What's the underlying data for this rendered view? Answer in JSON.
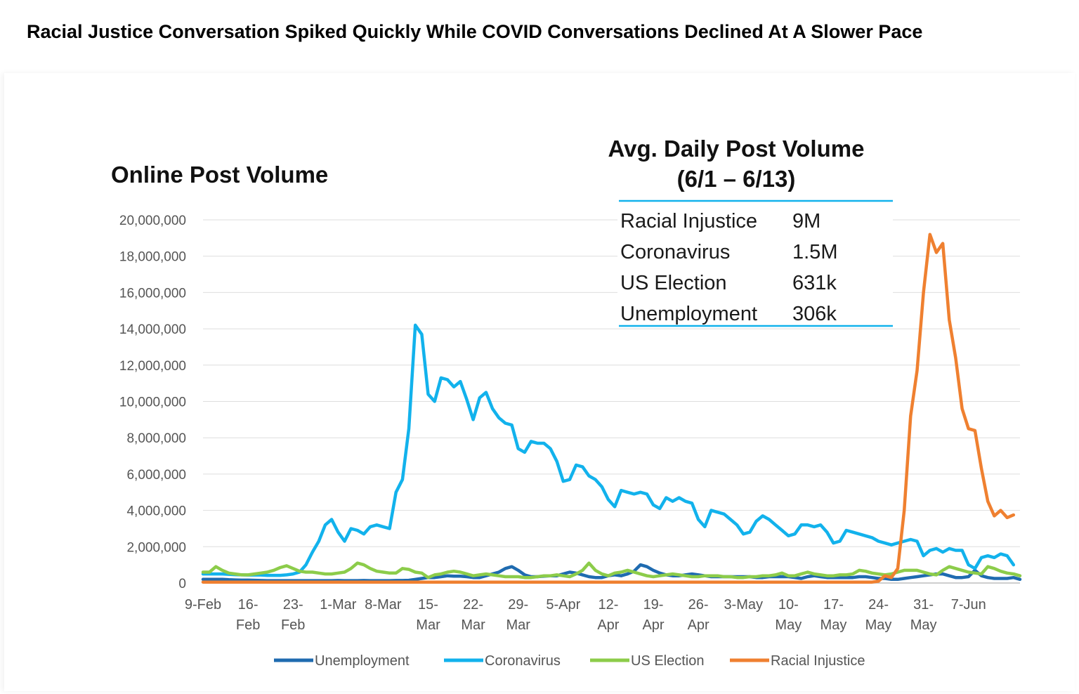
{
  "headline": "Racial Justice Conversation Spiked Quickly While COVID Conversations Declined At A Slower Pace",
  "chart_data": {
    "type": "line",
    "title": "Online Post Volume",
    "xlabel": "",
    "ylabel": "",
    "ylim": [
      0,
      20000000
    ],
    "y_ticks": [
      "0",
      "2,000,000",
      "4,000,000",
      "6,000,000",
      "8,000,000",
      "10,000,000",
      "12,000,000",
      "14,000,000",
      "16,000,000",
      "18,000,000",
      "20,000,000"
    ],
    "x_ticks": [
      {
        "i": 0,
        "line1": "9-Feb",
        "line2": ""
      },
      {
        "i": 7,
        "line1": "16-",
        "line2": "Feb"
      },
      {
        "i": 14,
        "line1": "23-",
        "line2": "Feb"
      },
      {
        "i": 21,
        "line1": "1-Mar",
        "line2": ""
      },
      {
        "i": 28,
        "line1": "8-Mar",
        "line2": ""
      },
      {
        "i": 35,
        "line1": "15-",
        "line2": "Mar"
      },
      {
        "i": 42,
        "line1": "22-",
        "line2": "Mar"
      },
      {
        "i": 49,
        "line1": "29-",
        "line2": "Mar"
      },
      {
        "i": 56,
        "line1": "5-Apr",
        "line2": ""
      },
      {
        "i": 63,
        "line1": "12-",
        "line2": "Apr"
      },
      {
        "i": 70,
        "line1": "19-",
        "line2": "Apr"
      },
      {
        "i": 77,
        "line1": "26-",
        "line2": "Apr"
      },
      {
        "i": 84,
        "line1": "3-May",
        "line2": ""
      },
      {
        "i": 91,
        "line1": "10-",
        "line2": "May"
      },
      {
        "i": 98,
        "line1": "17-",
        "line2": "May"
      },
      {
        "i": 105,
        "line1": "24-",
        "line2": "May"
      },
      {
        "i": 112,
        "line1": "31-",
        "line2": "May"
      },
      {
        "i": 119,
        "line1": "7-Jun",
        "line2": ""
      }
    ],
    "legend_position": "bottom",
    "grid": true,
    "series": [
      {
        "name": "Unemployment",
        "color": "#1F6BB0",
        "values": [
          200000,
          200000,
          200000,
          200000,
          180000,
          170000,
          160000,
          160000,
          150000,
          140000,
          130000,
          130000,
          130000,
          130000,
          130000,
          130000,
          130000,
          130000,
          130000,
          130000,
          130000,
          140000,
          130000,
          130000,
          130000,
          140000,
          130000,
          130000,
          130000,
          130000,
          140000,
          140000,
          150000,
          200000,
          250000,
          300000,
          300000,
          350000,
          400000,
          380000,
          380000,
          350000,
          300000,
          300000,
          400000,
          500000,
          600000,
          800000,
          900000,
          700000,
          450000,
          350000,
          350000,
          380000,
          400000,
          400000,
          500000,
          600000,
          550000,
          450000,
          350000,
          300000,
          300000,
          400000,
          450000,
          400000,
          500000,
          650000,
          1000000,
          900000,
          700000,
          550000,
          450000,
          400000,
          400000,
          450000,
          500000,
          450000,
          400000,
          350000,
          350000,
          350000,
          350000,
          350000,
          350000,
          350000,
          300000,
          300000,
          350000,
          350000,
          350000,
          350000,
          300000,
          250000,
          350000,
          400000,
          350000,
          300000,
          300000,
          300000,
          300000,
          300000,
          350000,
          350000,
          300000,
          250000,
          250000,
          200000,
          200000,
          250000,
          300000,
          350000,
          400000,
          450000,
          500000,
          500000,
          400000,
          300000,
          300000,
          350000,
          700000,
          400000,
          300000,
          250000,
          250000,
          250000,
          300000,
          200000
        ]
      },
      {
        "name": "Coronavirus",
        "color": "#12B2EC",
        "values": [
          500000,
          500000,
          500000,
          500000,
          480000,
          460000,
          450000,
          440000,
          440000,
          440000,
          420000,
          420000,
          420000,
          450000,
          500000,
          600000,
          1000000,
          1700000,
          2300000,
          3200000,
          3500000,
          2800000,
          2300000,
          3000000,
          2900000,
          2700000,
          3100000,
          3200000,
          3100000,
          3000000,
          5000000,
          5700000,
          8500000,
          14200000,
          13700000,
          10400000,
          10000000,
          11300000,
          11200000,
          10800000,
          11100000,
          10100000,
          9000000,
          10200000,
          10500000,
          9600000,
          9100000,
          8800000,
          8700000,
          7400000,
          7200000,
          7800000,
          7700000,
          7700000,
          7400000,
          6700000,
          5600000,
          5700000,
          6500000,
          6400000,
          5900000,
          5700000,
          5300000,
          4600000,
          4200000,
          5100000,
          5000000,
          4900000,
          5000000,
          4900000,
          4300000,
          4100000,
          4700000,
          4500000,
          4700000,
          4500000,
          4400000,
          3500000,
          3100000,
          4000000,
          3900000,
          3800000,
          3500000,
          3200000,
          2700000,
          2800000,
          3400000,
          3700000,
          3500000,
          3200000,
          2900000,
          2600000,
          2700000,
          3200000,
          3200000,
          3100000,
          3200000,
          2800000,
          2200000,
          2300000,
          2900000,
          2800000,
          2700000,
          2600000,
          2500000,
          2300000,
          2200000,
          2100000,
          2200000,
          2300000,
          2400000,
          2300000,
          1500000,
          1800000,
          1900000,
          1700000,
          1900000,
          1800000,
          1800000,
          1000000,
          800000,
          1400000,
          1500000,
          1400000,
          1600000,
          1500000,
          1000000
        ]
      },
      {
        "name": "US Election",
        "color": "#8CCC4A",
        "values": [
          600000,
          600000,
          900000,
          700000,
          550000,
          500000,
          450000,
          450000,
          500000,
          550000,
          600000,
          700000,
          850000,
          950000,
          800000,
          650000,
          600000,
          600000,
          550000,
          500000,
          500000,
          550000,
          600000,
          800000,
          1100000,
          1000000,
          800000,
          650000,
          600000,
          550000,
          550000,
          800000,
          750000,
          600000,
          550000,
          300000,
          450000,
          500000,
          600000,
          650000,
          600000,
          500000,
          400000,
          450000,
          500000,
          450000,
          400000,
          350000,
          350000,
          350000,
          300000,
          300000,
          350000,
          400000,
          400000,
          450000,
          400000,
          350000,
          500000,
          700000,
          1100000,
          700000,
          500000,
          400000,
          550000,
          600000,
          700000,
          600000,
          500000,
          400000,
          350000,
          400000,
          450000,
          500000,
          450000,
          400000,
          350000,
          350000,
          400000,
          400000,
          400000,
          350000,
          350000,
          300000,
          300000,
          350000,
          350000,
          400000,
          400000,
          450000,
          550000,
          400000,
          400000,
          500000,
          600000,
          500000,
          450000,
          400000,
          400000,
          450000,
          450000,
          500000,
          700000,
          650000,
          550000,
          500000,
          450000,
          500000,
          600000,
          700000,
          700000,
          700000,
          600000,
          500000,
          450000,
          700000,
          900000,
          800000,
          700000,
          600000,
          550000,
          500000,
          900000,
          800000,
          650000,
          550000,
          500000,
          400000
        ]
      },
      {
        "name": "Racial Injustice",
        "color": "#EF8030",
        "values": [
          50000,
          50000,
          50000,
          50000,
          50000,
          50000,
          50000,
          50000,
          50000,
          50000,
          50000,
          50000,
          50000,
          50000,
          50000,
          50000,
          50000,
          50000,
          50000,
          50000,
          50000,
          50000,
          50000,
          50000,
          50000,
          50000,
          50000,
          50000,
          50000,
          50000,
          50000,
          50000,
          50000,
          50000,
          50000,
          50000,
          50000,
          50000,
          50000,
          50000,
          50000,
          50000,
          50000,
          50000,
          50000,
          50000,
          50000,
          50000,
          50000,
          50000,
          50000,
          50000,
          50000,
          50000,
          50000,
          50000,
          50000,
          50000,
          50000,
          50000,
          50000,
          50000,
          50000,
          50000,
          50000,
          50000,
          50000,
          50000,
          50000,
          50000,
          50000,
          50000,
          50000,
          50000,
          50000,
          50000,
          50000,
          50000,
          50000,
          50000,
          50000,
          50000,
          50000,
          50000,
          50000,
          50000,
          50000,
          50000,
          50000,
          50000,
          50000,
          50000,
          50000,
          50000,
          50000,
          50000,
          50000,
          50000,
          50000,
          50000,
          50000,
          50000,
          50000,
          50000,
          50000,
          100000,
          400000,
          300000,
          800000,
          4000000,
          9200000,
          11700000,
          16000000,
          19200000,
          18200000,
          18700000,
          14500000,
          12400000,
          9600000,
          8500000,
          8400000,
          6300000,
          4500000,
          3700000,
          4000000,
          3600000,
          3750000
        ]
      }
    ],
    "inset": {
      "title_line1": "Avg. Daily Post Volume",
      "title_line2": "(6/1 – 6/13)",
      "rows": [
        {
          "label": "Racial Injustice",
          "value": "9M"
        },
        {
          "label": "Coronavirus",
          "value": "1.5M"
        },
        {
          "label": "US Election",
          "value": "631k"
        },
        {
          "label": "Unemployment",
          "value": "306k"
        }
      ],
      "rule_color": "#12B2EC"
    }
  }
}
